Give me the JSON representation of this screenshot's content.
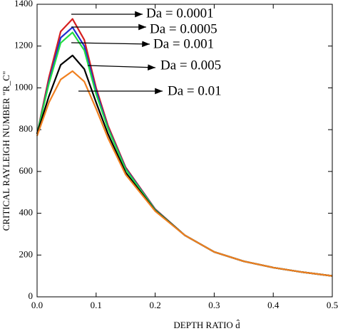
{
  "chart_data": {
    "type": "line",
    "xlabel": "DEPTH RATIO d̂",
    "ylabel": "CRITICAL RAYLEIGH NUMBER  \"R_C\"",
    "x": [
      0,
      0.02,
      0.04,
      0.06,
      0.08,
      0.1,
      0.12,
      0.15,
      0.2,
      0.25,
      0.3,
      0.35,
      0.4,
      0.45,
      0.5
    ],
    "series": [
      {
        "name": "Da = 0.0001",
        "color": "#d62020",
        "values": [
          780,
          1050,
          1270,
          1330,
          1230,
          1000,
          820,
          620,
          420,
          295,
          215,
          170,
          140,
          118,
          100
        ]
      },
      {
        "name": "Da = 0.0005",
        "color": "#1f2fd0",
        "values": [
          780,
          1030,
          1240,
          1290,
          1200,
          985,
          810,
          615,
          418,
          295,
          215,
          170,
          140,
          118,
          100
        ]
      },
      {
        "name": "Da = 0.001",
        "color": "#22dd44",
        "values": [
          780,
          1020,
          1215,
          1265,
          1180,
          970,
          805,
          610,
          416,
          295,
          215,
          170,
          140,
          118,
          100
        ]
      },
      {
        "name": "Da = 0.005",
        "color": "#000000",
        "values": [
          780,
          960,
          1110,
          1155,
          1090,
          930,
          780,
          595,
          412,
          295,
          215,
          170,
          140,
          118,
          100
        ]
      },
      {
        "name": "Da = 0.01",
        "color": "#f08020",
        "values": [
          770,
          930,
          1040,
          1080,
          1030,
          900,
          760,
          585,
          410,
          295,
          215,
          170,
          140,
          118,
          100
        ]
      }
    ],
    "xlim": [
      0,
      0.5
    ],
    "ylim": [
      0,
      1400
    ],
    "xticks": [
      {
        "value": 0,
        "label": "0.0"
      },
      0.1,
      0.2,
      0.3,
      0.4,
      0.5
    ],
    "yticks": [
      0,
      200,
      400,
      600,
      800,
      1000,
      1200,
      1400
    ]
  }
}
